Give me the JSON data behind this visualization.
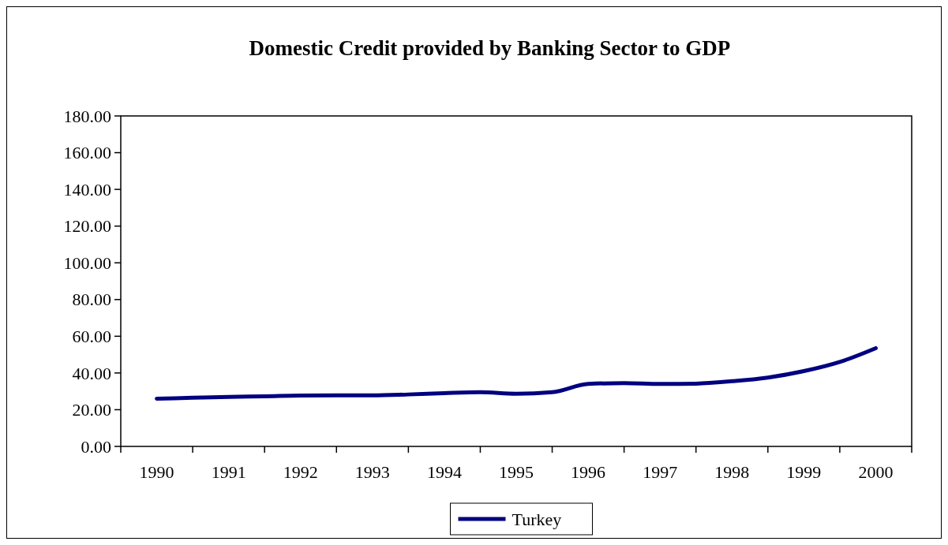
{
  "chart_data": {
    "type": "line",
    "title": "Domestic Credit provided by Banking Sector to GDP",
    "categories": [
      "1990",
      null,
      "1991",
      null,
      "1992",
      null,
      "1993",
      null,
      "1994",
      null,
      "1995",
      null,
      "1996",
      null,
      "1997",
      null,
      "1998",
      null,
      "1999",
      null,
      "2000"
    ],
    "series": [
      {
        "name": "Turkey",
        "color": "#000080",
        "values": [
          26,
          26.5,
          27,
          27.3,
          27.7,
          27.8,
          27.8,
          28.3,
          29,
          29.5,
          28.7,
          29.5,
          34,
          34.5,
          34,
          34.2,
          35.5,
          37.5,
          41,
          46,
          53.5
        ]
      }
    ],
    "ylim": [
      0,
      180
    ],
    "yticks": [
      {
        "value": 0,
        "label": "0.00"
      },
      {
        "value": 20,
        "label": "20.00"
      },
      {
        "value": 40,
        "label": "40.00"
      },
      {
        "value": 60,
        "label": "60.00"
      },
      {
        "value": 80,
        "label": "80.00"
      },
      {
        "value": 100,
        "label": "100.00"
      },
      {
        "value": 120,
        "label": "120.00"
      },
      {
        "value": 140,
        "label": "140.00"
      },
      {
        "value": 160,
        "label": "160.00"
      },
      {
        "value": 180,
        "label": "180.00"
      }
    ],
    "grid": false,
    "legend": "bottom",
    "line_style": "solid"
  }
}
